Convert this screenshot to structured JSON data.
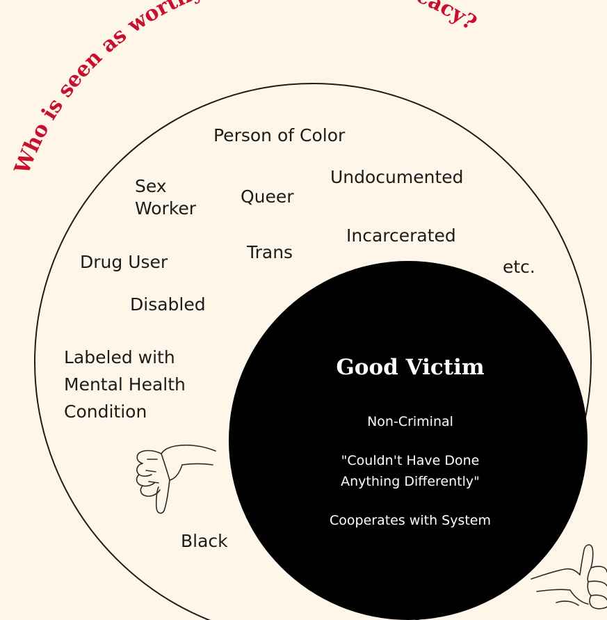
{
  "title": "Who is seen as worthy of support & advocacy?",
  "outer_labels": {
    "person_of_color": "Person of Color",
    "sex_worker": [
      "Sex",
      "Worker"
    ],
    "queer": "Queer",
    "undocumented": "Undocumented",
    "incarcerated": "Incarcerated",
    "trans": "Trans",
    "drug_user": "Drug User",
    "etc": "etc.",
    "disabled": "Disabled",
    "mental_health": [
      "Labeled with",
      "Mental Health",
      "Condition"
    ],
    "black": "Black"
  },
  "inner": {
    "title": "Good Victim",
    "criteria": [
      "Non-Criminal",
      "\"Couldn't Have Done",
      "Anything Differently\"",
      "Cooperates with System"
    ]
  },
  "colors": {
    "background": "#fdf6e9",
    "title": "#c8102e",
    "inner_circle": "#000000",
    "outline": "#1c1c1c"
  },
  "icons": [
    "thumbs-down-icon",
    "thumbs-up-icon"
  ]
}
